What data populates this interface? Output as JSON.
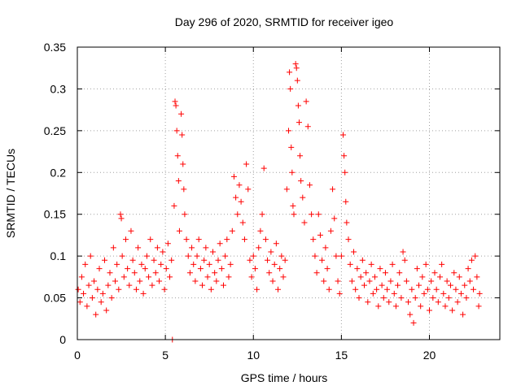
{
  "chart_data": {
    "type": "scatter",
    "title": "Day 296 of 2020, SRMTID for receiver igeo",
    "xlabel": "GPS time / hours",
    "ylabel": "SRMTID / TECUs",
    "xlim": [
      0,
      24
    ],
    "ylim": [
      0,
      0.35
    ],
    "x_ticks": [
      0,
      5,
      10,
      15,
      20
    ],
    "x_tick_labels": [
      "0",
      "5",
      "10",
      "15",
      "20"
    ],
    "y_ticks": [
      0,
      0.05,
      0.1,
      0.15,
      0.2,
      0.25,
      0.3,
      0.35
    ],
    "y_tick_labels": [
      "0",
      "0.05",
      "0.1",
      "0.15",
      "0.2",
      "0.25",
      "0.3",
      "0.35"
    ],
    "grid": true,
    "marker": "plus",
    "series_color": "#ff0000",
    "series": [
      {
        "name": "SRMTID",
        "points": [
          [
            0.05,
            0.06
          ],
          [
            0.15,
            0.045
          ],
          [
            0.25,
            0.075
          ],
          [
            0.35,
            0.055
          ],
          [
            0.45,
            0.09
          ],
          [
            0.55,
            0.04
          ],
          [
            0.65,
            0.065
          ],
          [
            0.75,
            0.1
          ],
          [
            0.85,
            0.05
          ],
          [
            0.95,
            0.07
          ],
          [
            1.05,
            0.03
          ],
          [
            1.15,
            0.06
          ],
          [
            1.25,
            0.085
          ],
          [
            1.35,
            0.045
          ],
          [
            1.45,
            0.055
          ],
          [
            1.55,
            0.095
          ],
          [
            1.65,
            0.035
          ],
          [
            1.75,
            0.065
          ],
          [
            1.85,
            0.08
          ],
          [
            1.95,
            0.05
          ],
          [
            2.05,
            0.11
          ],
          [
            2.15,
            0.07
          ],
          [
            2.25,
            0.09
          ],
          [
            2.35,
            0.06
          ],
          [
            2.45,
            0.15
          ],
          [
            2.5,
            0.145
          ],
          [
            2.55,
            0.1
          ],
          [
            2.65,
            0.075
          ],
          [
            2.75,
            0.12
          ],
          [
            2.85,
            0.085
          ],
          [
            2.95,
            0.065
          ],
          [
            3.05,
            0.13
          ],
          [
            3.15,
            0.095
          ],
          [
            3.25,
            0.08
          ],
          [
            3.35,
            0.06
          ],
          [
            3.45,
            0.11
          ],
          [
            3.55,
            0.07
          ],
          [
            3.65,
            0.09
          ],
          [
            3.75,
            0.055
          ],
          [
            3.85,
            0.085
          ],
          [
            3.95,
            0.1
          ],
          [
            4.05,
            0.075
          ],
          [
            4.15,
            0.12
          ],
          [
            4.25,
            0.065
          ],
          [
            4.35,
            0.095
          ],
          [
            4.45,
            0.08
          ],
          [
            4.55,
            0.11
          ],
          [
            4.65,
            0.07
          ],
          [
            4.75,
            0.09
          ],
          [
            4.85,
            0.105
          ],
          [
            4.95,
            0.06
          ],
          [
            5.05,
            0.085
          ],
          [
            5.15,
            0.115
          ],
          [
            5.25,
            0.075
          ],
          [
            5.35,
            0.095
          ],
          [
            5.4,
            0.0
          ],
          [
            5.5,
            0.16
          ],
          [
            5.55,
            0.285
          ],
          [
            5.6,
            0.28
          ],
          [
            5.65,
            0.25
          ],
          [
            5.7,
            0.22
          ],
          [
            5.75,
            0.19
          ],
          [
            5.8,
            0.13
          ],
          [
            5.9,
            0.27
          ],
          [
            5.95,
            0.245
          ],
          [
            6.0,
            0.21
          ],
          [
            6.05,
            0.18
          ],
          [
            6.1,
            0.15
          ],
          [
            6.2,
            0.12
          ],
          [
            6.3,
            0.1
          ],
          [
            6.4,
            0.08
          ],
          [
            6.5,
            0.11
          ],
          [
            6.6,
            0.09
          ],
          [
            6.7,
            0.07
          ],
          [
            6.8,
            0.1
          ],
          [
            6.9,
            0.12
          ],
          [
            7.0,
            0.085
          ],
          [
            7.1,
            0.065
          ],
          [
            7.2,
            0.095
          ],
          [
            7.3,
            0.11
          ],
          [
            7.4,
            0.075
          ],
          [
            7.5,
            0.09
          ],
          [
            7.6,
            0.06
          ],
          [
            7.7,
            0.105
          ],
          [
            7.8,
            0.08
          ],
          [
            7.9,
            0.07
          ],
          [
            8.0,
            0.095
          ],
          [
            8.1,
            0.115
          ],
          [
            8.2,
            0.085
          ],
          [
            8.3,
            0.065
          ],
          [
            8.4,
            0.1
          ],
          [
            8.5,
            0.12
          ],
          [
            8.6,
            0.075
          ],
          [
            8.7,
            0.09
          ],
          [
            8.8,
            0.13
          ],
          [
            8.9,
            0.195
          ],
          [
            9.0,
            0.17
          ],
          [
            9.1,
            0.15
          ],
          [
            9.2,
            0.185
          ],
          [
            9.3,
            0.165
          ],
          [
            9.4,
            0.14
          ],
          [
            9.5,
            0.12
          ],
          [
            9.6,
            0.21
          ],
          [
            9.7,
            0.18
          ],
          [
            9.8,
            0.095
          ],
          [
            9.9,
            0.075
          ],
          [
            10.0,
            0.1
          ],
          [
            10.1,
            0.085
          ],
          [
            10.2,
            0.06
          ],
          [
            10.3,
            0.11
          ],
          [
            10.4,
            0.13
          ],
          [
            10.5,
            0.15
          ],
          [
            10.6,
            0.205
          ],
          [
            10.7,
            0.12
          ],
          [
            10.8,
            0.095
          ],
          [
            10.9,
            0.08
          ],
          [
            11.0,
            0.105
          ],
          [
            11.1,
            0.07
          ],
          [
            11.2,
            0.09
          ],
          [
            11.3,
            0.115
          ],
          [
            11.4,
            0.06
          ],
          [
            11.5,
            0.085
          ],
          [
            11.6,
            0.1
          ],
          [
            11.7,
            0.075
          ],
          [
            11.8,
            0.095
          ],
          [
            11.9,
            0.18
          ],
          [
            12.0,
            0.25
          ],
          [
            12.05,
            0.32
          ],
          [
            12.1,
            0.3
          ],
          [
            12.15,
            0.23
          ],
          [
            12.2,
            0.2
          ],
          [
            12.25,
            0.16
          ],
          [
            12.3,
            0.15
          ],
          [
            12.4,
            0.33
          ],
          [
            12.45,
            0.325
          ],
          [
            12.5,
            0.31
          ],
          [
            12.55,
            0.28
          ],
          [
            12.6,
            0.26
          ],
          [
            12.65,
            0.22
          ],
          [
            12.7,
            0.19
          ],
          [
            12.8,
            0.17
          ],
          [
            12.9,
            0.14
          ],
          [
            13.0,
            0.285
          ],
          [
            13.1,
            0.255
          ],
          [
            13.2,
            0.185
          ],
          [
            13.3,
            0.15
          ],
          [
            13.4,
            0.12
          ],
          [
            13.5,
            0.1
          ],
          [
            13.6,
            0.08
          ],
          [
            13.7,
            0.15
          ],
          [
            13.8,
            0.125
          ],
          [
            13.9,
            0.095
          ],
          [
            14.0,
            0.07
          ],
          [
            14.1,
            0.11
          ],
          [
            14.2,
            0.085
          ],
          [
            14.3,
            0.06
          ],
          [
            14.4,
            0.13
          ],
          [
            14.5,
            0.18
          ],
          [
            14.6,
            0.145
          ],
          [
            14.7,
            0.1
          ],
          [
            14.8,
            0.07
          ],
          [
            14.9,
            0.055
          ],
          [
            15.0,
            0.1
          ],
          [
            15.1,
            0.245
          ],
          [
            15.15,
            0.22
          ],
          [
            15.2,
            0.2
          ],
          [
            15.25,
            0.165
          ],
          [
            15.3,
            0.14
          ],
          [
            15.4,
            0.12
          ],
          [
            15.5,
            0.09
          ],
          [
            15.6,
            0.07
          ],
          [
            15.7,
            0.105
          ],
          [
            15.8,
            0.06
          ],
          [
            15.9,
            0.085
          ],
          [
            16.0,
            0.05
          ],
          [
            16.1,
            0.075
          ],
          [
            16.2,
            0.095
          ],
          [
            16.3,
            0.065
          ],
          [
            16.4,
            0.08
          ],
          [
            16.5,
            0.045
          ],
          [
            16.6,
            0.07
          ],
          [
            16.7,
            0.09
          ],
          [
            16.8,
            0.055
          ],
          [
            16.9,
            0.075
          ],
          [
            17.0,
            0.06
          ],
          [
            17.1,
            0.04
          ],
          [
            17.2,
            0.085
          ],
          [
            17.3,
            0.065
          ],
          [
            17.4,
            0.05
          ],
          [
            17.5,
            0.08
          ],
          [
            17.6,
            0.06
          ],
          [
            17.7,
            0.045
          ],
          [
            17.8,
            0.07
          ],
          [
            17.9,
            0.09
          ],
          [
            18.0,
            0.055
          ],
          [
            18.1,
            0.04
          ],
          [
            18.2,
            0.065
          ],
          [
            18.3,
            0.08
          ],
          [
            18.4,
            0.05
          ],
          [
            18.5,
            0.105
          ],
          [
            18.6,
            0.095
          ],
          [
            18.7,
            0.07
          ],
          [
            18.8,
            0.045
          ],
          [
            18.9,
            0.03
          ],
          [
            19.0,
            0.06
          ],
          [
            19.1,
            0.02
          ],
          [
            19.2,
            0.05
          ],
          [
            19.3,
            0.085
          ],
          [
            19.4,
            0.065
          ],
          [
            19.5,
            0.04
          ],
          [
            19.6,
            0.075
          ],
          [
            19.7,
            0.055
          ],
          [
            19.8,
            0.09
          ],
          [
            19.9,
            0.06
          ],
          [
            20.0,
            0.035
          ],
          [
            20.1,
            0.07
          ],
          [
            20.2,
            0.05
          ],
          [
            20.3,
            0.08
          ],
          [
            20.4,
            0.06
          ],
          [
            20.5,
            0.045
          ],
          [
            20.6,
            0.075
          ],
          [
            20.7,
            0.09
          ],
          [
            20.8,
            0.055
          ],
          [
            20.9,
            0.04
          ],
          [
            21.0,
            0.07
          ],
          [
            21.1,
            0.05
          ],
          [
            21.2,
            0.065
          ],
          [
            21.3,
            0.035
          ],
          [
            21.4,
            0.08
          ],
          [
            21.5,
            0.06
          ],
          [
            21.6,
            0.045
          ],
          [
            21.7,
            0.075
          ],
          [
            21.8,
            0.055
          ],
          [
            21.9,
            0.03
          ],
          [
            22.0,
            0.065
          ],
          [
            22.1,
            0.05
          ],
          [
            22.2,
            0.085
          ],
          [
            22.3,
            0.07
          ],
          [
            22.4,
            0.095
          ],
          [
            22.5,
            0.06
          ],
          [
            22.6,
            0.1
          ],
          [
            22.7,
            0.075
          ],
          [
            22.8,
            0.04
          ],
          [
            22.85,
            0.055
          ]
        ]
      }
    ]
  }
}
